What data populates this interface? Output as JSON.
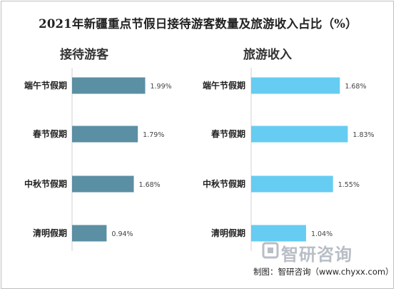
{
  "title": "2021年新疆重点节假日接待游客数量及旅游收入占比（%）",
  "source": "制图：智研咨询（www.chyxx.com）",
  "watermark": "智研咨询",
  "colors": {
    "left_bar": "#5b8fa3",
    "right_bar": "#66ccf2"
  },
  "chart_data": [
    {
      "type": "bar",
      "orientation": "horizontal",
      "title": "接待游客",
      "categories": [
        "端午节假期",
        "春节假期",
        "中秋节假期",
        "清明假期"
      ],
      "values": [
        1.99,
        1.79,
        1.68,
        0.94
      ],
      "value_labels": [
        "1.99%",
        "1.79%",
        "1.68%",
        "0.94%"
      ]
    },
    {
      "type": "bar",
      "orientation": "horizontal",
      "title": "旅游收入",
      "categories": [
        "端午节假期",
        "春节假期",
        "中秋节假期",
        "清明假期"
      ],
      "values": [
        1.68,
        1.83,
        1.55,
        1.04
      ],
      "value_labels": [
        "1.68%",
        "1.83%",
        "1.55%",
        "1.04%"
      ]
    }
  ]
}
